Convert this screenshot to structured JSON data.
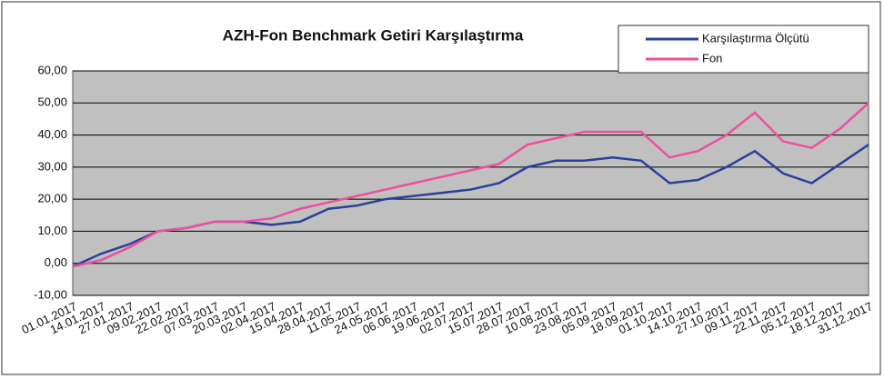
{
  "chart_data": {
    "type": "line",
    "title": "AZH-Fon Benchmark Getiri Karşılaştırma",
    "categories": [
      "01.01.2017",
      "14.01.2017",
      "27.01.2017",
      "09.02.2017",
      "22.02.2017",
      "07.03.2017",
      "20.03.2017",
      "02.04.2017",
      "15.04.2017",
      "28.04.2017",
      "11.05.2017",
      "24.05.2017",
      "06.06.2017",
      "19.06.2017",
      "02.07.2017",
      "15.07.2017",
      "28.07.2017",
      "10.08.2017",
      "23.08.2017",
      "05.09.2017",
      "18.09.2017",
      "01.10.2017",
      "14.10.2017",
      "27.10.2017",
      "09.11.2017",
      "22.11.2017",
      "05.12.2017",
      "18.12.2017",
      "31.12.2017"
    ],
    "series": [
      {
        "name": "Karşılaştırma Ölçütü",
        "color": "#2b3f9c",
        "values": [
          -1,
          3,
          6,
          10,
          11,
          13,
          13,
          12,
          13,
          17,
          18,
          20,
          21,
          22,
          23,
          25,
          30,
          32,
          32,
          33,
          32,
          25,
          26,
          30,
          35,
          28,
          25,
          31,
          37
        ]
      },
      {
        "name": "Fon",
        "color": "#ee4f9f",
        "values": [
          -1,
          1,
          5,
          10,
          11,
          13,
          13,
          14,
          17,
          19,
          21,
          23,
          25,
          27,
          29,
          31,
          37,
          39,
          41,
          41,
          41,
          33,
          35,
          40,
          47,
          38,
          36,
          42,
          50
        ]
      }
    ],
    "ylim": [
      -10,
      60
    ],
    "yticks": [
      {
        "value": -10,
        "label": "-10,00"
      },
      {
        "value": 0,
        "label": "0,00"
      },
      {
        "value": 10,
        "label": "10,00"
      },
      {
        "value": 20,
        "label": "20,00"
      },
      {
        "value": 30,
        "label": "30,00"
      },
      {
        "value": 40,
        "label": "40,00"
      },
      {
        "value": 50,
        "label": "50,00"
      },
      {
        "value": 60,
        "label": "60,00"
      }
    ],
    "grid": true,
    "legend": "top-right"
  }
}
